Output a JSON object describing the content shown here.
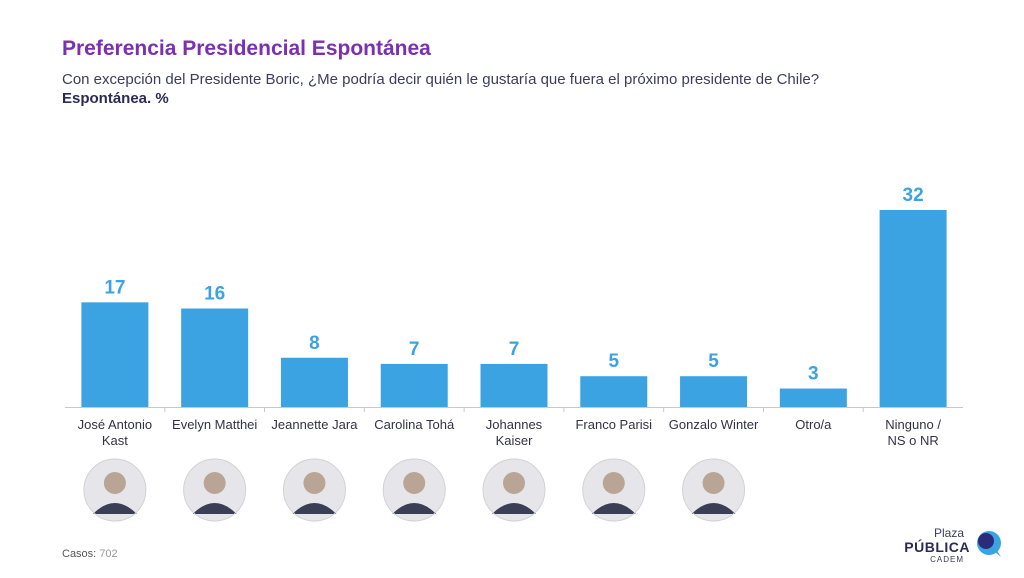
{
  "header": {
    "title": "Preferencia Presidencial Espontánea",
    "subtitle": "Con excepción del Presidente Boric, ¿Me podría decir quién le gustaría que fuera el próximo presidente de Chile?",
    "unit": "Espontánea. %"
  },
  "chart_data": {
    "type": "bar",
    "categories": [
      [
        "José Antonio",
        "Kast"
      ],
      [
        "Evelyn Matthei"
      ],
      [
        "Jeannette Jara"
      ],
      [
        "Carolina Tohá"
      ],
      [
        "Johannes",
        "Kaiser"
      ],
      [
        "Franco Parisi"
      ],
      [
        "Gonzalo Winter"
      ],
      [
        "Otro/a"
      ],
      [
        "Ninguno /",
        "NS o NR"
      ]
    ],
    "values": [
      17,
      16,
      8,
      7,
      7,
      5,
      5,
      3,
      32
    ],
    "ylim": [
      0,
      32
    ],
    "grid": false,
    "bar_color": "#3ba3e2",
    "portraits": [
      true,
      true,
      true,
      true,
      true,
      true,
      true,
      false,
      false
    ]
  },
  "footer": {
    "label": "Casos:",
    "count": "702"
  },
  "logo": {
    "line1": "Plaza",
    "line2": "PÚBLICA",
    "line3": "CADEM"
  }
}
